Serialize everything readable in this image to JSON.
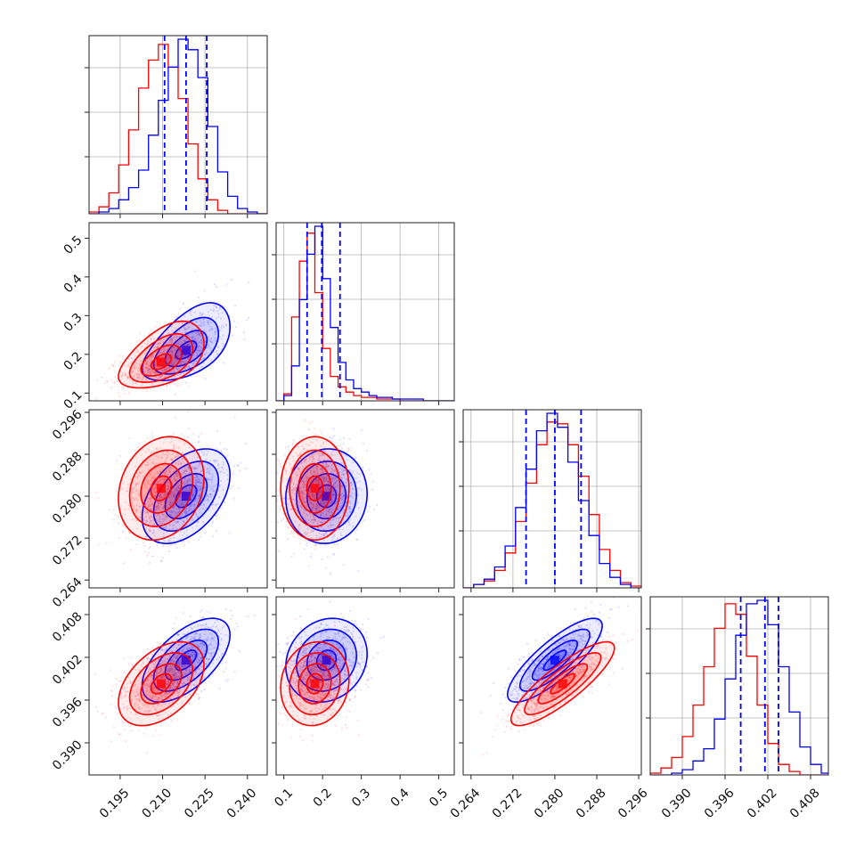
{
  "chart_data": {
    "type": "corner",
    "title": "",
    "grid": true,
    "colors": {
      "blue": "#0000ff",
      "red": "#ff0000",
      "frame": "#222222",
      "grid": "#b0b0b0"
    },
    "series": [
      {
        "color": "#0000ff"
      },
      {
        "color": "#ff0000"
      }
    ],
    "parameters": [
      {
        "range": [
          0.184,
          0.247
        ],
        "ticks": [
          0.195,
          0.21,
          0.225,
          0.24
        ],
        "tick_labels": [
          "0.195",
          "0.210",
          "0.225",
          "0.240"
        ]
      },
      {
        "range": [
          0.08,
          0.54
        ],
        "ticks": [
          0.1,
          0.2,
          0.3,
          0.4,
          0.5
        ],
        "tick_labels": [
          "0.1",
          "0.2",
          "0.3",
          "0.4",
          "0.5"
        ]
      },
      {
        "range": [
          0.2625,
          0.2965
        ],
        "ticks": [
          0.264,
          0.272,
          0.28,
          0.288,
          0.296
        ],
        "tick_labels": [
          "0.264",
          "0.272",
          "0.280",
          "0.288",
          "0.296"
        ]
      },
      {
        "range": [
          0.3855,
          0.4105
        ],
        "ticks": [
          0.39,
          0.396,
          0.402,
          0.408
        ],
        "tick_labels": [
          "0.390",
          "0.396",
          "0.402",
          "0.408"
        ]
      }
    ],
    "quantile_lines": [
      [
        0.2107,
        0.2183,
        0.2256
      ],
      [
        0.16,
        0.198,
        0.245
      ],
      [
        0.2745,
        0.28,
        0.285
      ],
      [
        0.3982,
        0.4016,
        0.4035
      ]
    ],
    "histograms": [
      {
        "edges": [
          0.184,
          0.1875,
          0.191,
          0.1945,
          0.198,
          0.2015,
          0.205,
          0.2085,
          0.212,
          0.2155,
          0.219,
          0.2225,
          0.226,
          0.2295,
          0.233,
          0.2365,
          0.24,
          0.2435,
          0.247
        ],
        "blue": [
          0,
          1,
          3,
          8,
          15,
          25,
          45,
          65,
          84,
          100,
          94,
          78,
          50,
          24,
          10,
          3,
          1,
          0
        ],
        "red": [
          1,
          4,
          12,
          28,
          48,
          72,
          88,
          97,
          84,
          66,
          40,
          20,
          8,
          2,
          0,
          0,
          0,
          0
        ]
      },
      {
        "edges": [
          0.08,
          0.1,
          0.12,
          0.14,
          0.16,
          0.18,
          0.2,
          0.22,
          0.24,
          0.26,
          0.28,
          0.3,
          0.32,
          0.34,
          0.36,
          0.38,
          0.4,
          0.42,
          0.44,
          0.46,
          0.48,
          0.5,
          0.52,
          0.54
        ],
        "blue": [
          0,
          3,
          20,
          58,
          84,
          100,
          70,
          42,
          22,
          12,
          7,
          5,
          3,
          2,
          2,
          1,
          1,
          1,
          1,
          0,
          0,
          0,
          0
        ],
        "red": [
          0,
          4,
          48,
          80,
          96,
          62,
          30,
          14,
          8,
          5,
          3,
          2,
          2,
          1,
          1,
          1,
          0,
          0,
          0,
          0,
          0,
          0,
          0
        ]
      },
      {
        "edges": [
          0.2625,
          0.2645,
          0.2665,
          0.2685,
          0.2705,
          0.2725,
          0.2745,
          0.2765,
          0.2785,
          0.2805,
          0.2825,
          0.2845,
          0.2865,
          0.2885,
          0.2905,
          0.2925,
          0.2945,
          0.2965
        ],
        "blue": [
          0,
          2,
          5,
          12,
          24,
          46,
          68,
          90,
          100,
          92,
          72,
          50,
          30,
          14,
          6,
          2,
          0
        ],
        "red": [
          0,
          2,
          4,
          10,
          20,
          38,
          60,
          82,
          95,
          94,
          82,
          64,
          42,
          22,
          10,
          3,
          1
        ]
      },
      {
        "edges": [
          0.3855,
          0.387,
          0.3885,
          0.39,
          0.3915,
          0.393,
          0.3945,
          0.396,
          0.3975,
          0.399,
          0.4005,
          0.402,
          0.4035,
          0.405,
          0.4065,
          0.408,
          0.4095,
          0.4105
        ],
        "blue": [
          0,
          0,
          1,
          3,
          8,
          15,
          32,
          55,
          80,
          98,
          100,
          86,
          62,
          36,
          16,
          6,
          1
        ],
        "red": [
          1,
          4,
          10,
          22,
          40,
          62,
          84,
          98,
          92,
          68,
          40,
          18,
          6,
          2,
          0,
          0,
          0
        ]
      }
    ],
    "distributions": {
      "blue": {
        "mean": [
          0.2183,
          0.21,
          0.28,
          0.4016
        ],
        "std": [
          0.0074,
          0.05,
          0.0043,
          0.0028
        ],
        "corr": [
          [
            1,
            0.55,
            0.45,
            0.6
          ],
          [
            0.55,
            1,
            0.05,
            0.15
          ],
          [
            0.45,
            0.05,
            1,
            0.82
          ],
          [
            0.6,
            0.15,
            0.82,
            1
          ]
        ]
      },
      "red": {
        "mean": [
          0.2095,
          0.18,
          0.2815,
          0.3983
        ],
        "std": [
          0.0072,
          0.042,
          0.0047,
          0.0028
        ],
        "corr": [
          [
            1,
            0.5,
            0.2,
            0.45
          ],
          [
            0.5,
            1,
            0.0,
            0.1
          ],
          [
            0.2,
            0.0,
            1,
            0.85
          ],
          [
            0.45,
            0.1,
            0.85,
            1
          ]
        ]
      }
    }
  }
}
